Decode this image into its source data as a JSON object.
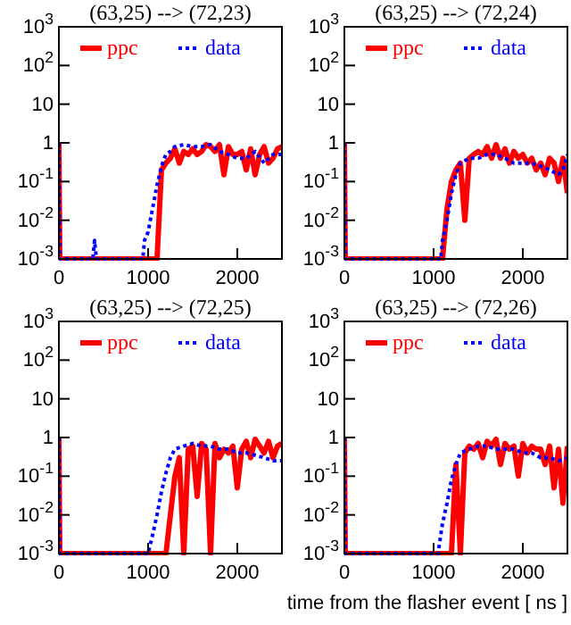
{
  "chart_data": [
    {
      "type": "line",
      "title": "(63,25) --> (72,23)",
      "log": "y",
      "legend": "top",
      "xlim": [
        0,
        2500
      ],
      "ylim": [
        0.001,
        1000
      ],
      "xticks": [
        0,
        1000,
        2000
      ],
      "yticks": [
        {
          "value": 1000,
          "label": "10$^{3}$"
        },
        {
          "value": 100,
          "label": "10$^{2}$"
        },
        {
          "value": 10,
          "label": "10"
        },
        {
          "value": 1,
          "label": "1"
        },
        {
          "value": 0.1,
          "label": "10$^{-1}$"
        },
        {
          "value": 0.01,
          "label": "10$^{-2}$"
        },
        {
          "value": 0.001,
          "label": "10$^{-3}$"
        }
      ],
      "series": [
        {
          "name": "ppc",
          "color": "#ff0000",
          "line_style": "solid",
          "x": [
            0,
            10,
            1100,
            1150,
            1200,
            1250,
            1300,
            1350,
            1400,
            1450,
            1500,
            1550,
            1600,
            1650,
            1700,
            1750,
            1800,
            1850,
            1900,
            1950,
            2000,
            2050,
            2100,
            2150,
            2200,
            2250,
            2300,
            2350,
            2400,
            2450,
            2500
          ],
          "values": [
            1,
            0.001,
            0.001,
            0.2,
            0.3,
            0.4,
            0.7,
            0.3,
            0.6,
            0.5,
            0.7,
            0.5,
            0.6,
            0.9,
            0.8,
            0.6,
            0.9,
            0.15,
            0.8,
            0.5,
            0.5,
            0.6,
            0.2,
            0.7,
            0.15,
            0.5,
            0.8,
            0.3,
            0.4,
            0.7,
            0.8
          ]
        },
        {
          "name": "data",
          "color": "#0000ff",
          "line_style": "dotted",
          "x": [
            0,
            10,
            380,
            400,
            420,
            940,
            960,
            1000,
            1050,
            1100,
            1150,
            1200,
            1250,
            1300,
            1400,
            1500,
            1600,
            1700,
            1800,
            1900,
            2000,
            2100,
            2200,
            2300,
            2400,
            2500
          ],
          "values": [
            1,
            0.001,
            0.001,
            0.003,
            0.001,
            0.001,
            0.003,
            0.005,
            0.02,
            0.08,
            0.25,
            0.5,
            0.6,
            0.8,
            0.9,
            0.8,
            0.8,
            0.9,
            0.6,
            0.5,
            0.4,
            0.4,
            0.6,
            0.3,
            0.5,
            0.5
          ]
        }
      ]
    },
    {
      "type": "line",
      "title": "(63,25) --> (72,24)",
      "log": "y",
      "legend": "top",
      "xlim": [
        0,
        2500
      ],
      "ylim": [
        0.001,
        1000
      ],
      "xticks": [
        0,
        1000,
        2000
      ],
      "yticks": [
        {
          "value": 1000,
          "label": "10$^{3}$"
        },
        {
          "value": 100,
          "label": "10$^{2}$"
        },
        {
          "value": 10,
          "label": "10"
        },
        {
          "value": 1,
          "label": "1"
        },
        {
          "value": 0.1,
          "label": "10$^{-1}$"
        },
        {
          "value": 0.01,
          "label": "10$^{-2}$"
        },
        {
          "value": 0.001,
          "label": "10$^{-3}$"
        }
      ],
      "series": [
        {
          "name": "ppc",
          "color": "#ff0000",
          "line_style": "solid",
          "x": [
            0,
            10,
            1100,
            1150,
            1200,
            1250,
            1300,
            1350,
            1400,
            1450,
            1500,
            1550,
            1600,
            1650,
            1700,
            1750,
            1800,
            1850,
            1900,
            1950,
            2000,
            2050,
            2100,
            2150,
            2200,
            2250,
            2300,
            2350,
            2400,
            2450,
            2500
          ],
          "values": [
            1,
            0.001,
            0.001,
            0.02,
            0.1,
            0.2,
            0.3,
            0.01,
            0.4,
            0.5,
            0.6,
            0.5,
            0.8,
            0.4,
            0.9,
            0.4,
            0.7,
            0.3,
            0.6,
            0.4,
            0.5,
            0.3,
            0.4,
            0.2,
            0.3,
            0.15,
            0.4,
            0.3,
            0.1,
            0.4,
            0.05
          ]
        },
        {
          "name": "data",
          "color": "#0000ff",
          "line_style": "dotted",
          "x": [
            0,
            10,
            1080,
            1100,
            1150,
            1200,
            1250,
            1300,
            1400,
            1500,
            1600,
            1700,
            1800,
            1900,
            2000,
            2100,
            2200,
            2300,
            2400,
            2450,
            2500
          ],
          "values": [
            1,
            0.001,
            0.001,
            0.003,
            0.01,
            0.05,
            0.15,
            0.3,
            0.4,
            0.4,
            0.5,
            0.5,
            0.4,
            0.3,
            0.3,
            0.3,
            0.25,
            0.2,
            0.15,
            0.2,
            0.5
          ]
        }
      ]
    },
    {
      "type": "line",
      "title": "(63,25) --> (72,25)",
      "log": "y",
      "legend": "top",
      "xlim": [
        0,
        2500
      ],
      "ylim": [
        0.001,
        1000
      ],
      "xticks": [
        0,
        1000,
        2000
      ],
      "yticks": [
        {
          "value": 1000,
          "label": "10$^{3}$"
        },
        {
          "value": 100,
          "label": "10$^{2}$"
        },
        {
          "value": 10,
          "label": "10"
        },
        {
          "value": 1,
          "label": "1"
        },
        {
          "value": 0.1,
          "label": "10$^{-1}$"
        },
        {
          "value": 0.01,
          "label": "10$^{-2}$"
        },
        {
          "value": 0.001,
          "label": "10$^{-3}$"
        }
      ],
      "series": [
        {
          "name": "ppc",
          "color": "#ff0000",
          "line_style": "solid",
          "x": [
            0,
            10,
            1200,
            1250,
            1300,
            1350,
            1400,
            1450,
            1500,
            1550,
            1600,
            1650,
            1700,
            1750,
            1800,
            1850,
            1900,
            1950,
            2000,
            2050,
            2100,
            2150,
            2200,
            2250,
            2300,
            2350,
            2400,
            2450,
            2500
          ],
          "values": [
            1,
            0.001,
            0.001,
            0.01,
            0.1,
            0.3,
            0.001,
            0.5,
            0.6,
            0.03,
            0.7,
            0.5,
            0.001,
            0.7,
            0.3,
            0.5,
            0.4,
            0.6,
            0.05,
            0.5,
            0.8,
            0.3,
            0.9,
            0.6,
            0.4,
            0.8,
            0.3,
            0.6,
            0.7
          ]
        },
        {
          "name": "data",
          "color": "#0000ff",
          "line_style": "dotted",
          "x": [
            0,
            10,
            1000,
            1050,
            1100,
            1150,
            1200,
            1250,
            1300,
            1400,
            1500,
            1600,
            1700,
            1800,
            1900,
            2000,
            2100,
            2200,
            2300,
            2400,
            2500
          ],
          "values": [
            1,
            0.001,
            0.001,
            0.003,
            0.01,
            0.04,
            0.12,
            0.3,
            0.5,
            0.6,
            0.7,
            0.6,
            0.6,
            0.5,
            0.5,
            0.4,
            0.4,
            0.35,
            0.3,
            0.25,
            0.25
          ]
        }
      ]
    },
    {
      "type": "line",
      "title": "(63,25) --> (72,26)",
      "xlabel": "time from the flasher event [ ns ]",
      "log": "y",
      "legend": "top",
      "xlim": [
        0,
        2500
      ],
      "ylim": [
        0.001,
        1000
      ],
      "xticks": [
        0,
        1000,
        2000
      ],
      "yticks": [
        {
          "value": 1000,
          "label": "10$^{3}$"
        },
        {
          "value": 100,
          "label": "10$^{2}$"
        },
        {
          "value": 10,
          "label": "10"
        },
        {
          "value": 1,
          "label": "1"
        },
        {
          "value": 0.1,
          "label": "10$^{-1}$"
        },
        {
          "value": 0.01,
          "label": "10$^{-2}$"
        },
        {
          "value": 0.001,
          "label": "10$^{-3}$"
        }
      ],
      "series": [
        {
          "name": "ppc",
          "color": "#ff0000",
          "line_style": "solid",
          "x": [
            0,
            10,
            1200,
            1250,
            1300,
            1350,
            1400,
            1450,
            1500,
            1550,
            1600,
            1650,
            1700,
            1750,
            1800,
            1850,
            1900,
            1950,
            2000,
            2050,
            2100,
            2150,
            2200,
            2250,
            2300,
            2350,
            2400,
            2450,
            2500
          ],
          "values": [
            1,
            0.001,
            0.001,
            0.2,
            0.001,
            0.4,
            0.6,
            0.5,
            0.7,
            0.3,
            0.8,
            0.6,
            0.9,
            0.2,
            0.7,
            0.5,
            0.6,
            0.1,
            0.7,
            0.4,
            0.6,
            0.5,
            0.5,
            0.2,
            0.6,
            0.05,
            0.5,
            0.02,
            0.6
          ]
        },
        {
          "name": "data",
          "color": "#0000ff",
          "line_style": "dotted",
          "x": [
            0,
            10,
            1050,
            1080,
            1100,
            1150,
            1200,
            1250,
            1300,
            1400,
            1500,
            1600,
            1700,
            1800,
            1900,
            2000,
            2100,
            2200,
            2300,
            2400,
            2500
          ],
          "values": [
            1,
            0.001,
            0.001,
            0.003,
            0.006,
            0.02,
            0.08,
            0.2,
            0.4,
            0.5,
            0.6,
            0.6,
            0.5,
            0.5,
            0.5,
            0.4,
            0.4,
            0.3,
            0.3,
            0.25,
            0.3
          ]
        }
      ]
    }
  ]
}
